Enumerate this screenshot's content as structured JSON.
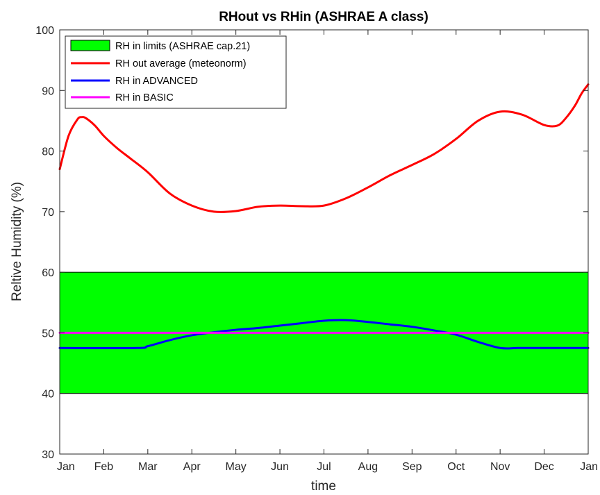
{
  "chart_data": {
    "type": "line",
    "title": "RHout vs RHin (ASHRAE A class)",
    "xlabel": "time",
    "ylabel": "Reltive Humidity (%)",
    "ylim": [
      30,
      100
    ],
    "yticks": [
      30,
      40,
      50,
      60,
      70,
      80,
      90,
      100
    ],
    "xlim": [
      0,
      12
    ],
    "xtick_labels": [
      "Jan",
      "Feb",
      "Mar",
      "Apr",
      "May",
      "Jun",
      "Jul",
      "Aug",
      "Sep",
      "Oct",
      "Nov",
      "Dec",
      "Jan"
    ],
    "grid": false,
    "legend_position": "top-left",
    "band": {
      "name": "RH in limits (ASHRAE cap.21)",
      "lower": 40,
      "upper": 60,
      "color": "#00ff00"
    },
    "series": [
      {
        "name": "RH out average (meteonorm)",
        "color": "#ff0000",
        "x": [
          0,
          0.2,
          0.4,
          0.5,
          0.6,
          0.8,
          1.0,
          1.3,
          1.6,
          2.0,
          2.5,
          3.0,
          3.5,
          4.0,
          4.5,
          5.0,
          5.5,
          6.0,
          6.5,
          7.0,
          7.5,
          8.0,
          8.5,
          9.0,
          9.5,
          10.0,
          10.5,
          11.0,
          11.3,
          11.5,
          11.7,
          11.85,
          12.0
        ],
        "y": [
          77,
          82.5,
          85.2,
          85.6,
          85.4,
          84.2,
          82.5,
          80.5,
          78.8,
          76.5,
          73,
          71,
          70,
          70.1,
          70.8,
          71,
          70.9,
          71,
          72.2,
          74,
          76,
          77.7,
          79.5,
          82,
          85,
          86.5,
          86,
          84.3,
          84.2,
          85.5,
          87.5,
          89.5,
          91
        ]
      },
      {
        "name": "RH in ADVANCED",
        "color": "#0000ff",
        "x": [
          0,
          1.75,
          2.0,
          2.5,
          3.0,
          3.5,
          4.0,
          4.5,
          5.0,
          5.5,
          6.0,
          6.5,
          7.0,
          7.5,
          8.0,
          8.5,
          9.0,
          9.5,
          10.0,
          10.4,
          10.8,
          11.0,
          11.3,
          11.5,
          12.0
        ],
        "y": [
          47.5,
          47.5,
          47.8,
          48.8,
          49.6,
          50.1,
          50.5,
          50.8,
          51.2,
          51.6,
          52,
          52.1,
          51.8,
          51.4,
          51.0,
          50.4,
          49.7,
          48.5,
          47.5,
          47.5,
          47.5,
          47.5,
          47.5,
          47.5,
          47.5
        ]
      },
      {
        "name": "RH in BASIC",
        "color": "#ff00ff",
        "x": [
          0,
          12
        ],
        "y": [
          50,
          50
        ]
      }
    ]
  }
}
